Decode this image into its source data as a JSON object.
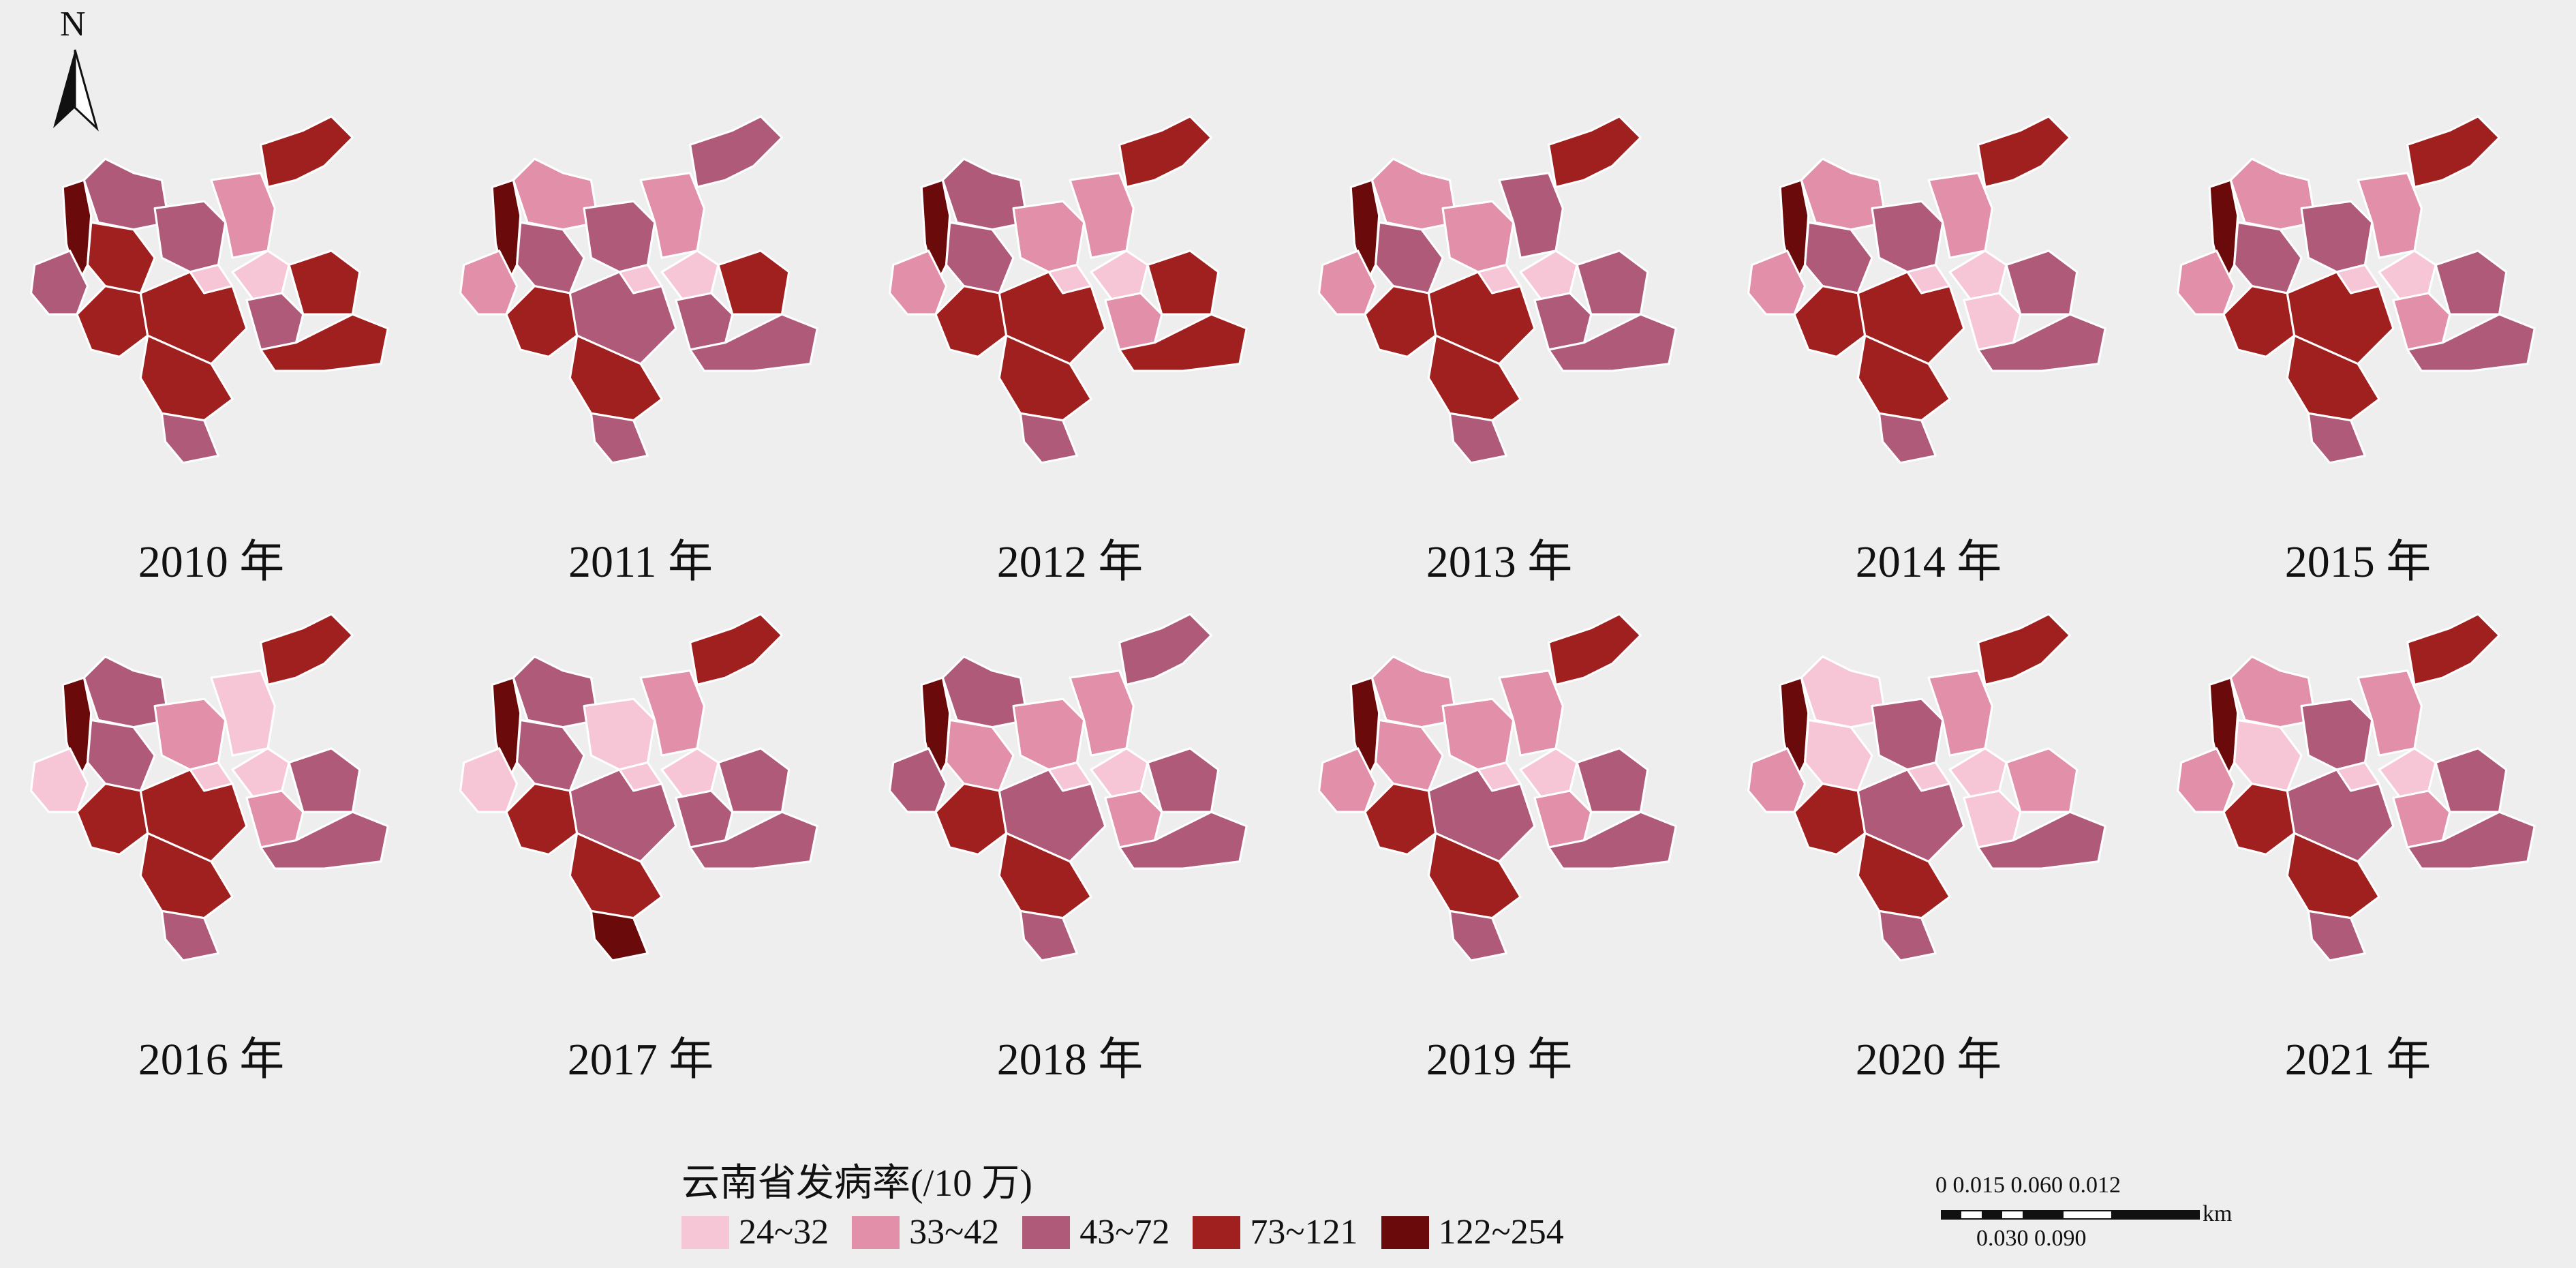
{
  "north": {
    "label": "N"
  },
  "legend": {
    "title": "云南省发病率(/10 万)",
    "classes": [
      {
        "label": "24~32",
        "color": "#f7c6d6"
      },
      {
        "label": "33~42",
        "color": "#e28faa"
      },
      {
        "label": "43~72",
        "color": "#b05a7a"
      },
      {
        "label": "73~121",
        "color": "#a0201f"
      },
      {
        "label": "122~254",
        "color": "#6b0a0a"
      }
    ]
  },
  "scalebar": {
    "top_labels": "0 0.015 0.060      0.012",
    "bottom_labels": "0.030      0.090",
    "unit": "km"
  },
  "maps": [
    {
      "year": "2010 年",
      "region_classes": [
        4,
        2,
        3,
        2,
        1,
        0,
        2,
        3,
        3,
        2,
        0,
        3,
        3,
        3,
        2,
        3
      ]
    },
    {
      "year": "2011 年",
      "region_classes": [
        4,
        1,
        2,
        2,
        1,
        0,
        1,
        3,
        2,
        2,
        0,
        3,
        2,
        3,
        2,
        2
      ]
    },
    {
      "year": "2012 年",
      "region_classes": [
        4,
        2,
        2,
        1,
        1,
        0,
        1,
        3,
        3,
        1,
        0,
        3,
        3,
        3,
        2,
        3
      ]
    },
    {
      "year": "2013 年",
      "region_classes": [
        4,
        1,
        2,
        1,
        2,
        0,
        1,
        3,
        3,
        2,
        0,
        2,
        2,
        3,
        2,
        3
      ]
    },
    {
      "year": "2014 年",
      "region_classes": [
        4,
        1,
        2,
        2,
        1,
        0,
        1,
        3,
        3,
        0,
        0,
        2,
        2,
        3,
        2,
        3
      ]
    },
    {
      "year": "2015 年",
      "region_classes": [
        4,
        1,
        2,
        2,
        1,
        0,
        1,
        3,
        3,
        1,
        0,
        2,
        2,
        3,
        2,
        3
      ]
    },
    {
      "year": "2016 年",
      "region_classes": [
        4,
        2,
        2,
        1,
        0,
        0,
        0,
        3,
        3,
        1,
        0,
        2,
        2,
        3,
        2,
        3
      ]
    },
    {
      "year": "2017 年",
      "region_classes": [
        4,
        2,
        2,
        0,
        1,
        0,
        0,
        3,
        2,
        2,
        0,
        2,
        2,
        3,
        4,
        3
      ]
    },
    {
      "year": "2018 年",
      "region_classes": [
        4,
        2,
        1,
        1,
        1,
        0,
        2,
        3,
        2,
        1,
        0,
        2,
        2,
        3,
        2,
        2
      ]
    },
    {
      "year": "2019 年",
      "region_classes": [
        4,
        1,
        1,
        1,
        1,
        0,
        1,
        3,
        2,
        1,
        0,
        2,
        2,
        3,
        2,
        3
      ]
    },
    {
      "year": "2020 年",
      "region_classes": [
        4,
        0,
        0,
        2,
        1,
        0,
        1,
        3,
        2,
        0,
        0,
        1,
        2,
        3,
        2,
        3
      ]
    },
    {
      "year": "2021 年",
      "region_classes": [
        4,
        1,
        0,
        2,
        1,
        0,
        1,
        3,
        2,
        1,
        0,
        2,
        2,
        3,
        2,
        3
      ]
    }
  ]
}
